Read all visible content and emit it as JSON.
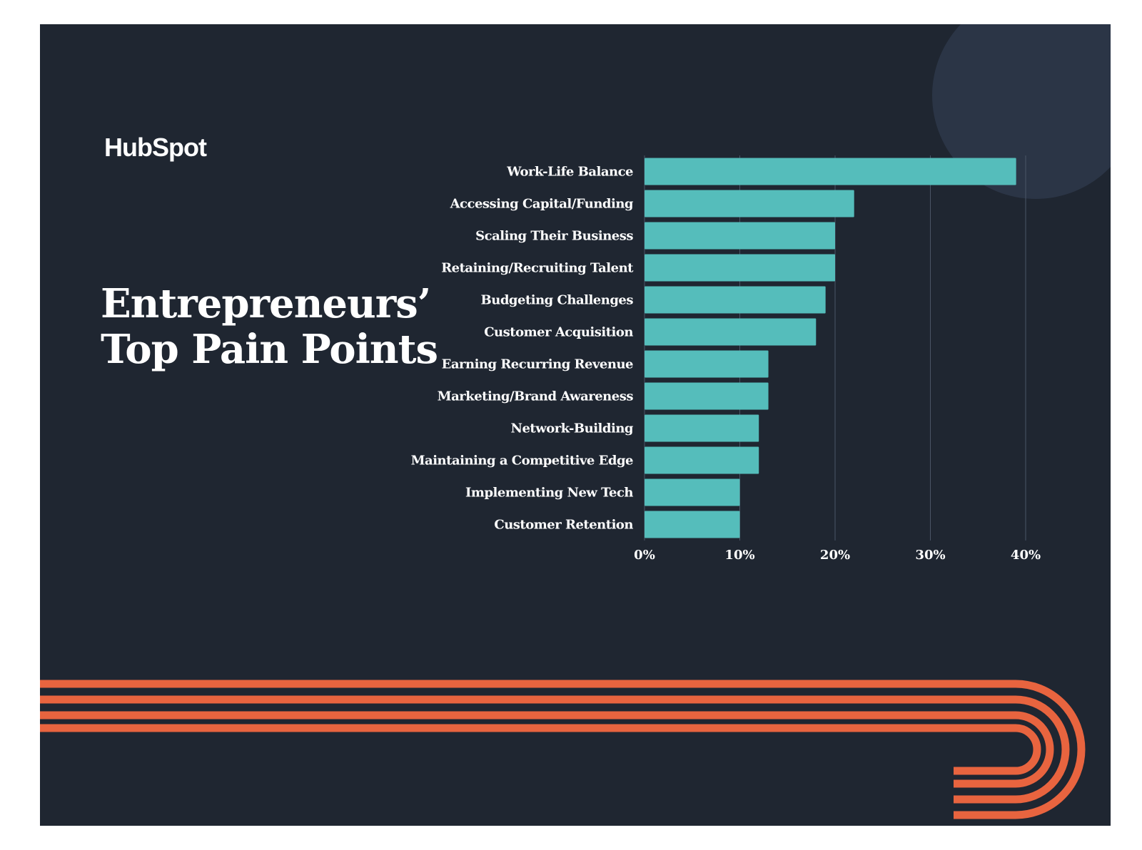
{
  "brand": {
    "logo_text": "HubSpot"
  },
  "title_lines": [
    "Entrepreneurs’",
    "Top Pain Points"
  ],
  "colors": {
    "background": "#1f2631",
    "bar": "#55bdbb",
    "accent_stripes": "#e8643f",
    "circle": "#2b3546",
    "gridline": "#4a5566",
    "text": "#ffffff"
  },
  "chart_data": {
    "type": "bar",
    "orientation": "horizontal",
    "categories": [
      "Work-Life Balance",
      "Accessing Capital/Funding",
      "Scaling Their Business",
      "Retaining/Recruiting Talent",
      "Budgeting Challenges",
      "Customer Acquisition",
      "Earning Recurring Revenue",
      "Marketing/Brand Awareness",
      "Network-Building",
      "Maintaining a Competitive Edge",
      "Implementing New Tech",
      "Customer Retention"
    ],
    "values": [
      39,
      22,
      20,
      20,
      19,
      18,
      13,
      13,
      12,
      12,
      10,
      10
    ],
    "xlim": [
      0,
      40
    ],
    "x_ticks": [
      0,
      10,
      20,
      30,
      40
    ],
    "x_tick_labels": [
      "0%",
      "10%",
      "20%",
      "30%",
      "40%"
    ],
    "grid": true
  }
}
